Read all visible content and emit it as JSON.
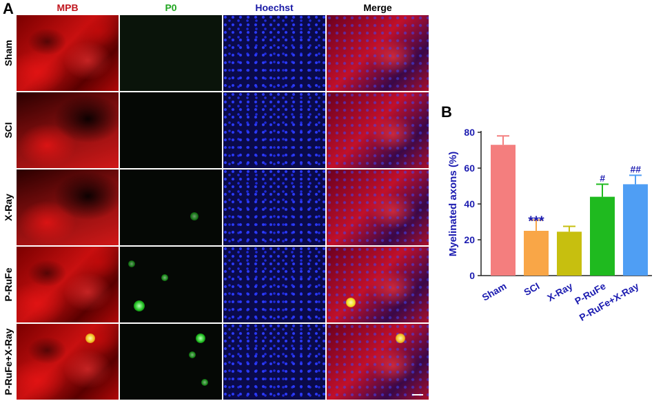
{
  "figure": {
    "panel_a_letter": "A",
    "panel_b_letter": "B",
    "columns": [
      {
        "label": "MPB",
        "color": "#c0161e"
      },
      {
        "label": "P0",
        "color": "#1fa51f"
      },
      {
        "label": "Hoechst",
        "color": "#1a1aa6"
      },
      {
        "label": "Merge",
        "color": "#000000"
      }
    ],
    "rows": [
      "Sham",
      "SCI",
      "X-Ray",
      "P-RuFe",
      "P-RuFe+X-Ray"
    ]
  },
  "chart_data": {
    "type": "bar",
    "ylabel": "Myelinated axons (%)",
    "ylim": [
      0,
      80
    ],
    "yticks": [
      0,
      20,
      40,
      60,
      80
    ],
    "categories": [
      "Sham",
      "SCI",
      "X-Ray",
      "P-RuFe",
      "P-RuFe+X-Ray"
    ],
    "values": [
      73,
      25,
      24.5,
      44,
      51
    ],
    "errors": [
      5,
      6,
      3,
      7,
      5
    ],
    "annotations": [
      "",
      "***",
      "",
      "#",
      "##"
    ],
    "colors": [
      "#f47e7e",
      "#f9a647",
      "#c7bf0f",
      "#1fba1f",
      "#4f9ef4"
    ],
    "label_color": "#1b1bb0"
  }
}
